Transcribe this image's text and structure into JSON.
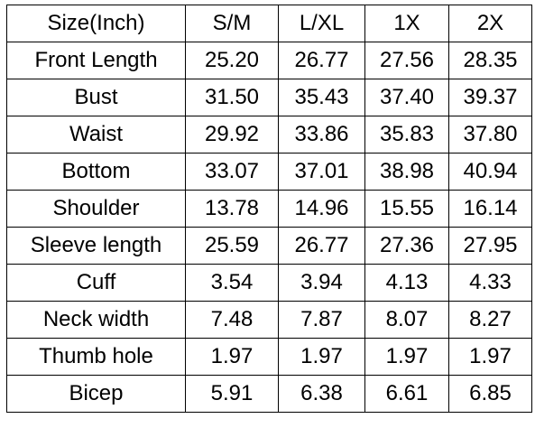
{
  "table": {
    "header": [
      "Size(Inch)",
      "S/M",
      "L/XL",
      "1X",
      "2X"
    ],
    "rows": [
      [
        "Front Length",
        "25.20",
        "26.77",
        "27.56",
        "28.35"
      ],
      [
        "Bust",
        "31.50",
        "35.43",
        "37.40",
        "39.37"
      ],
      [
        "Waist",
        "29.92",
        "33.86",
        "35.83",
        "37.80"
      ],
      [
        "Bottom",
        "33.07",
        "37.01",
        "38.98",
        "40.94"
      ],
      [
        "Shoulder",
        "13.78",
        "14.96",
        "15.55",
        "16.14"
      ],
      [
        "Sleeve length",
        "25.59",
        "26.77",
        "27.36",
        "27.95"
      ],
      [
        "Cuff",
        "3.54",
        "3.94",
        "4.13",
        "4.33"
      ],
      [
        "Neck width",
        "7.48",
        "7.87",
        "8.07",
        "8.27"
      ],
      [
        "Thumb hole",
        "1.97",
        "1.97",
        "1.97",
        "1.97"
      ],
      [
        "Bicep",
        "5.91",
        "6.38",
        "6.61",
        "6.85"
      ]
    ]
  }
}
